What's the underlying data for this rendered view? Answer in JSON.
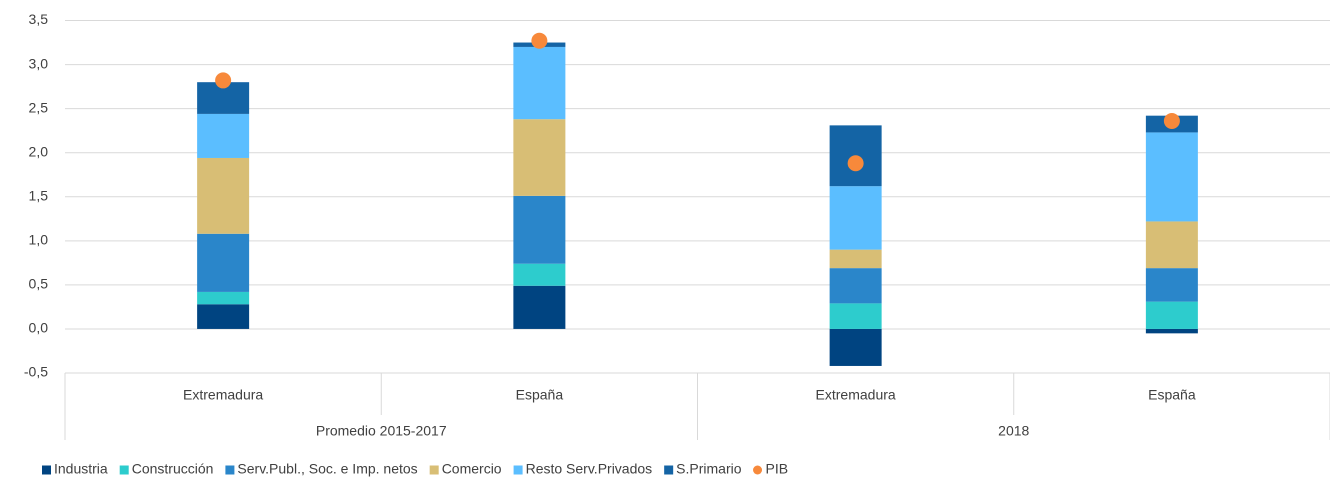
{
  "chart_data": {
    "type": "bar",
    "stacked": true,
    "category_groups": [
      {
        "name": "Promedio 2015-2017",
        "categories": [
          "Extremadura",
          "España"
        ]
      },
      {
        "name": "2018",
        "categories": [
          "Extremadura",
          "España"
        ]
      }
    ],
    "series": [
      {
        "name": "Industria",
        "color": "#004481",
        "values": [
          0.28,
          0.49,
          -0.42,
          -0.05
        ]
      },
      {
        "name": "Construcción",
        "color": "#2dcccd",
        "values": [
          0.14,
          0.25,
          0.29,
          0.31
        ]
      },
      {
        "name": "Serv.Publ., Soc. e Imp. netos",
        "color": "#2a86ca",
        "values": [
          0.66,
          0.77,
          0.4,
          0.38
        ]
      },
      {
        "name": "Comercio",
        "color": "#d8be75",
        "values": [
          0.86,
          0.87,
          0.21,
          0.53
        ]
      },
      {
        "name": "Resto Serv.Privados",
        "color": "#5bbeff",
        "values": [
          0.5,
          0.82,
          0.72,
          1.01
        ]
      },
      {
        "name": "S.Primario",
        "color": "#1464a5",
        "values": [
          0.36,
          0.05,
          0.69,
          0.19
        ]
      },
      {
        "name": "PIB",
        "color": "#f7893b",
        "type": "scatter",
        "values": [
          2.82,
          3.27,
          1.88,
          2.36
        ]
      }
    ],
    "ylim": [
      -0.5,
      3.5
    ],
    "yticks": [
      {
        "value": -0.5,
        "label": "-0,5"
      },
      {
        "value": 0,
        "label": "0,0"
      },
      {
        "value": 0.5,
        "label": "0,5"
      },
      {
        "value": 1,
        "label": "1,0"
      },
      {
        "value": 1.5,
        "label": "1,5"
      },
      {
        "value": 2,
        "label": "2,0"
      },
      {
        "value": 2.5,
        "label": "2,5"
      },
      {
        "value": 3,
        "label": "3,0"
      },
      {
        "value": 3.5,
        "label": "3,5"
      }
    ],
    "grid": true,
    "legend": "bottom"
  }
}
